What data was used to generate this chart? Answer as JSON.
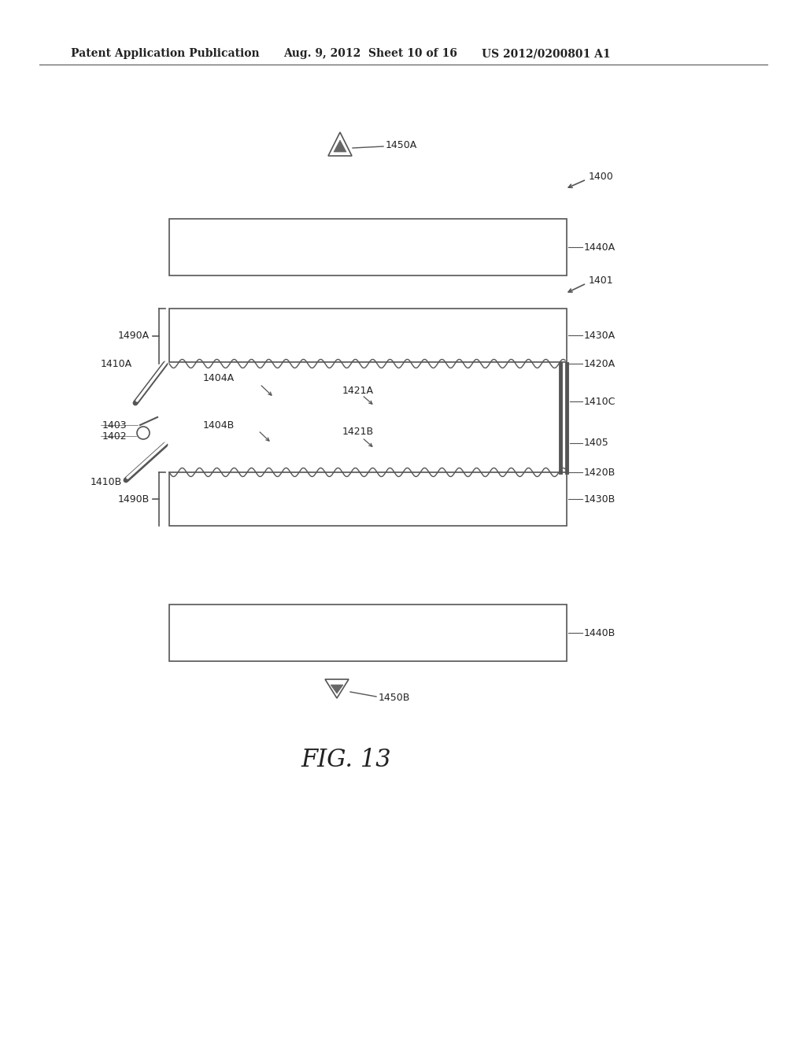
{
  "bg_color": "#ffffff",
  "header_text1": "Patent Application Publication",
  "header_text2": "Aug. 9, 2012",
  "header_text3": "Sheet 10 of 16",
  "header_text4": "US 2012/0200801 A1",
  "fig_label": "FIG. 13",
  "label_color": "#222222",
  "box_color": "#555555",
  "wave_color": "#555555",
  "line_color": "#555555"
}
